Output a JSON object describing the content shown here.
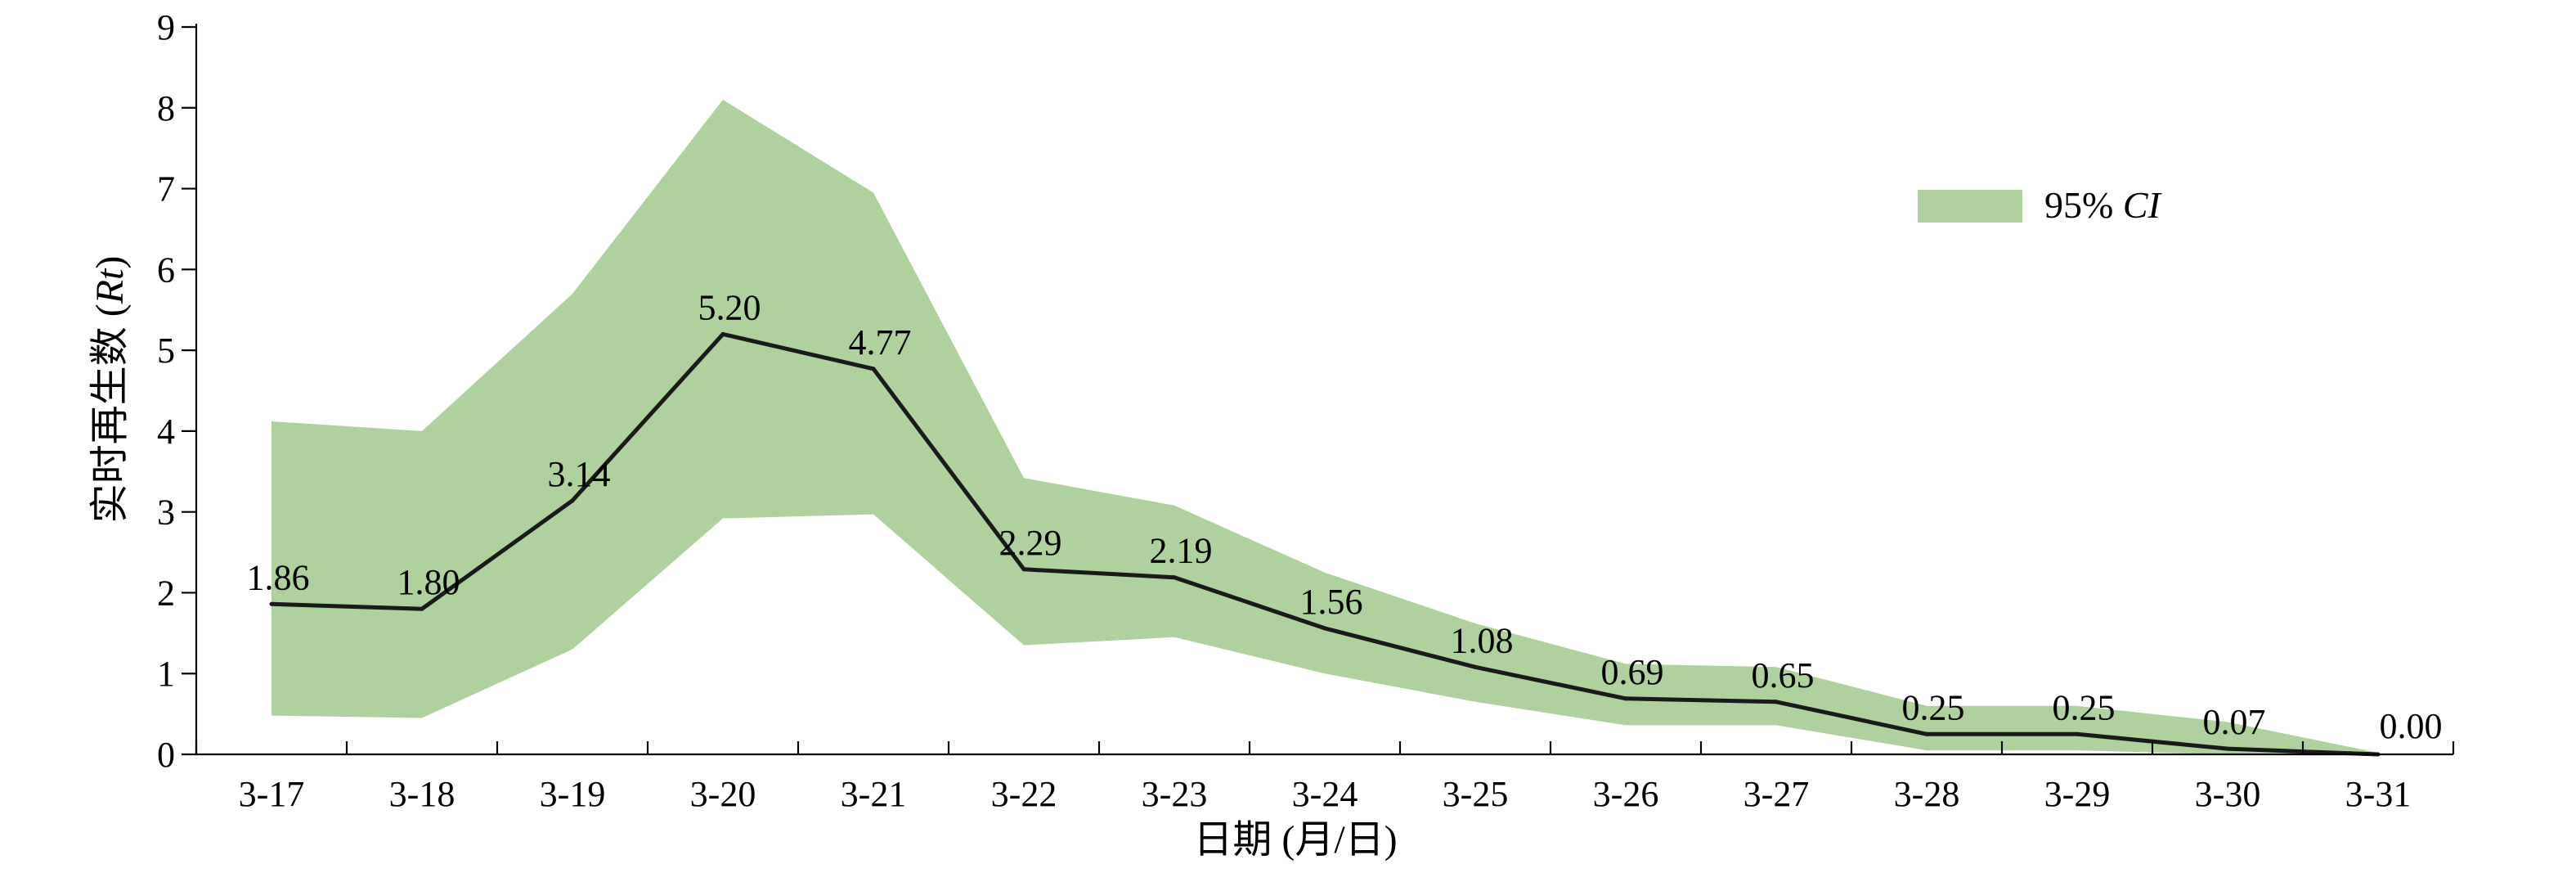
{
  "chart_data": {
    "type": "line",
    "categories": [
      "3-17",
      "3-18",
      "3-19",
      "3-20",
      "3-21",
      "3-22",
      "3-23",
      "3-24",
      "3-25",
      "3-26",
      "3-27",
      "3-28",
      "3-29",
      "3-30",
      "3-31"
    ],
    "series": [
      {
        "values": [
          1.86,
          1.8,
          3.14,
          5.2,
          4.77,
          2.29,
          2.19,
          1.56,
          1.08,
          0.69,
          0.65,
          0.25,
          0.25,
          0.07,
          0.0
        ],
        "labels": [
          "1.86",
          "1.80",
          "3.14",
          "5.20",
          "4.77",
          "2.29",
          "2.19",
          "1.56",
          "1.08",
          "0.69",
          "0.65",
          "0.25",
          "0.25",
          "0.07",
          "0.00"
        ],
        "color": "#1a1a1a"
      }
    ],
    "ci_band": {
      "name": "95% CI",
      "color": "#aed19d",
      "upper": [
        4.12,
        4.0,
        5.7,
        8.1,
        6.95,
        3.42,
        3.08,
        2.25,
        1.62,
        1.12,
        1.08,
        0.6,
        0.6,
        0.4,
        0.02
      ],
      "lower": [
        0.48,
        0.45,
        1.3,
        2.92,
        2.97,
        1.35,
        1.45,
        1.0,
        0.65,
        0.36,
        0.36,
        0.05,
        0.05,
        0.0,
        0.0
      ]
    },
    "xlabel": "日期 (月/日)",
    "ylabel": "实时再生数 (",
    "ylabel_italic": "Rt",
    "ylabel_suffix": ")",
    "ylim": [
      0,
      9
    ],
    "yticks": [
      "0",
      "1",
      "2",
      "3",
      "4",
      "5",
      "6",
      "7",
      "8",
      "9"
    ],
    "legend": {
      "label_prefix": "95% ",
      "label_italic": "CI",
      "placement": "top-right"
    },
    "grid": false
  }
}
